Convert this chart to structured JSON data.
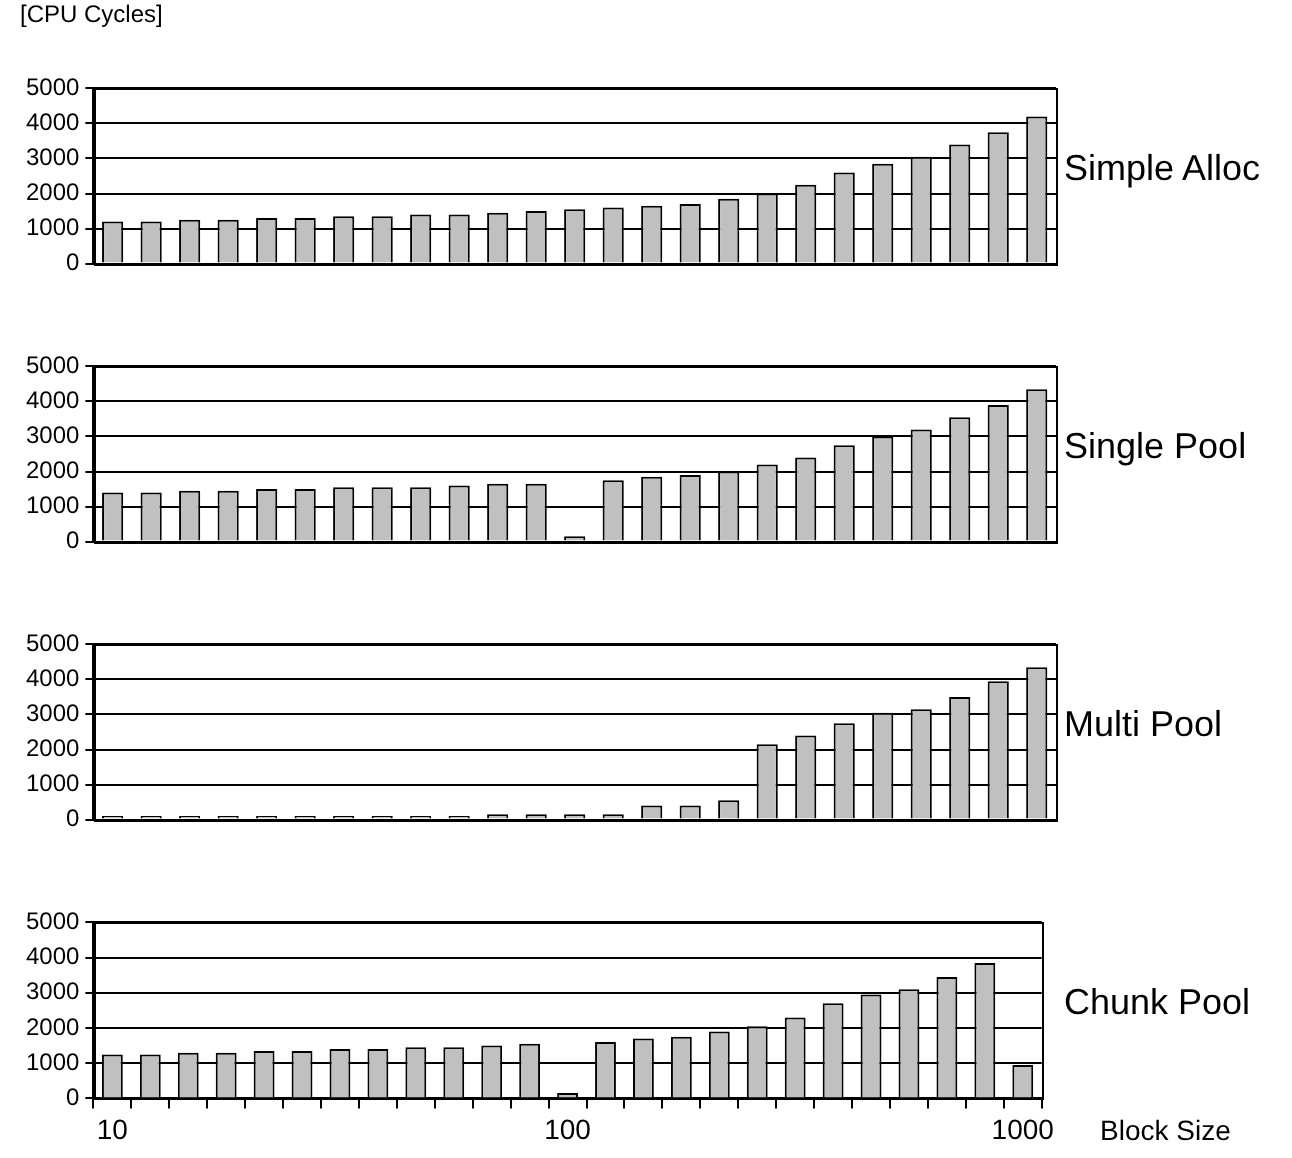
{
  "chart_data": [
    {
      "type": "bar",
      "title": "Simple Alloc",
      "ylabel": "[CPU Cycles]",
      "categories": [
        "10",
        null,
        null,
        null,
        null,
        null,
        null,
        null,
        null,
        null,
        null,
        null,
        "100",
        null,
        null,
        null,
        null,
        null,
        null,
        null,
        null,
        null,
        null,
        null,
        "1000"
      ],
      "color": "#c0c0c0",
      "ylim": [
        0,
        5000
      ],
      "yticks": [
        0,
        1000,
        2000,
        3000,
        4000,
        5000
      ],
      "grid": "y",
      "tick_labels": "y",
      "values": [
        1200,
        1200,
        1250,
        1250,
        1300,
        1300,
        1350,
        1350,
        1400,
        1400,
        1450,
        1500,
        1550,
        1600,
        1650,
        1700,
        1850,
        2000,
        2250,
        2600,
        2850,
        3050,
        3400,
        3750,
        4200
      ]
    },
    {
      "type": "bar",
      "title": "Single Pool",
      "categories": [
        "10",
        null,
        null,
        null,
        null,
        null,
        null,
        null,
        null,
        null,
        null,
        null,
        "100",
        null,
        null,
        null,
        null,
        null,
        null,
        null,
        null,
        null,
        null,
        null,
        "1000"
      ],
      "color": "#c0c0c0",
      "ylim": [
        0,
        5000
      ],
      "yticks": [
        0,
        1000,
        2000,
        3000,
        4000,
        5000
      ],
      "grid": "y",
      "tick_labels": "y",
      "values": [
        1400,
        1400,
        1450,
        1450,
        1500,
        1500,
        1550,
        1550,
        1550,
        1600,
        1650,
        1650,
        150,
        1750,
        1850,
        1900,
        2000,
        2200,
        2400,
        2750,
        3000,
        3200,
        3550,
        3900,
        4350
      ]
    },
    {
      "type": "bar",
      "title": "Multi Pool",
      "categories": [
        "10",
        null,
        null,
        null,
        null,
        null,
        null,
        null,
        null,
        null,
        null,
        null,
        "100",
        null,
        null,
        null,
        null,
        null,
        null,
        null,
        null,
        null,
        null,
        null,
        "1000"
      ],
      "color": "#c0c0c0",
      "ylim": [
        0,
        5000
      ],
      "yticks": [
        0,
        1000,
        2000,
        3000,
        4000,
        5000
      ],
      "grid": "y",
      "tick_labels": "y",
      "values": [
        100,
        100,
        100,
        100,
        100,
        100,
        100,
        100,
        100,
        100,
        150,
        150,
        150,
        150,
        400,
        400,
        550,
        2150,
        2400,
        2750,
        3050,
        3150,
        3500,
        3950,
        4350
      ]
    },
    {
      "type": "bar",
      "title": "Chunk Pool",
      "xlabel": "Block Size",
      "categories": [
        "10",
        null,
        null,
        null,
        null,
        null,
        null,
        null,
        null,
        null,
        null,
        null,
        "100",
        null,
        null,
        null,
        null,
        null,
        null,
        null,
        null,
        null,
        null,
        null,
        "1000"
      ],
      "color": "#c0c0c0",
      "ylim": [
        0,
        5000
      ],
      "yticks": [
        0,
        1000,
        2000,
        3000,
        4000,
        5000
      ],
      "grid": "y",
      "values": [
        1250,
        1250,
        1300,
        1300,
        1350,
        1350,
        1400,
        1400,
        1450,
        1450,
        1500,
        1550,
        150,
        1600,
        1700,
        1750,
        1900,
        2050,
        2300,
        2700,
        2950,
        3100,
        3450,
        3850,
        950
      ]
    }
  ]
}
